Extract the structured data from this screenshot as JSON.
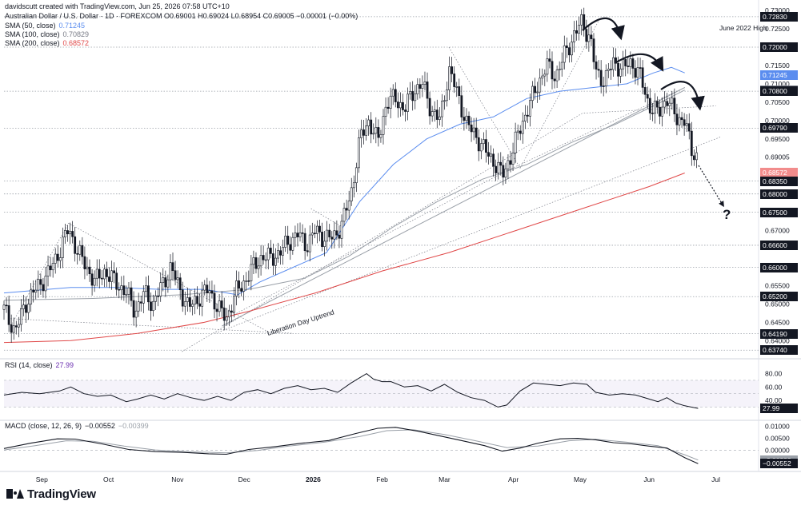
{
  "header": {
    "created_by": "davidscutt created with TradingView.com, Jun 25, 2026 07:58 UTC+10",
    "symbol_line": "Australian Dollar / U.S. Dollar · 1D · FOREXCOM  O0.69001  H0.69024  L0.68954  C0.69005  −0.00001 (−0.00%)",
    "sma50_label": "SMA (50, close)",
    "sma50_value": "0.71245",
    "sma100_label": "SMA (100, close)",
    "sma100_value": "0.70829",
    "sma200_label": "SMA (200, close)",
    "sma200_value": "0.68572",
    "rsi_label": "RSI (14, close)",
    "rsi_value": "27.99",
    "macd_label": "MACD (close, 12, 26, 9)",
    "macd_value1": "−0.00552",
    "macd_value2": "−0.00399"
  },
  "annotations": {
    "june_high": "June 2022 High",
    "uptrend": "Liberation Day Uptrend",
    "question": "?"
  },
  "price_ticks": [
    "0.73000",
    "0.72500",
    "0.71500",
    "0.71000",
    "0.70500",
    "0.70000",
    "0.69500",
    "0.69005",
    "0.67000",
    "0.65500",
    "0.65000",
    "0.64500",
    "0.64000"
  ],
  "price_levels": [
    {
      "label": "0.72830",
      "value": 0.7283,
      "bg": "#131722",
      "fg": "#ffffff"
    },
    {
      "label": "0.72000",
      "value": 0.72,
      "bg": "#131722",
      "fg": "#ffffff"
    },
    {
      "label": "0.71245",
      "value": 0.71245,
      "bg": "#5b8def",
      "fg": "#ffffff"
    },
    {
      "label": "0.70829",
      "value": 0.70829,
      "bg": "#787b86",
      "fg": "#ffffff"
    },
    {
      "label": "0.70800",
      "value": 0.708,
      "bg": "#131722",
      "fg": "#ffffff"
    },
    {
      "label": "0.69790",
      "value": 0.6979,
      "bg": "#131722",
      "fg": "#ffffff"
    },
    {
      "label": "0.68572",
      "value": 0.68572,
      "bg": "#f28c8c",
      "fg": "#ffffff"
    },
    {
      "label": "0.68350",
      "value": 0.6835,
      "bg": "#131722",
      "fg": "#ffffff"
    },
    {
      "label": "0.68000",
      "value": 0.68,
      "bg": "#131722",
      "fg": "#ffffff"
    },
    {
      "label": "0.67500",
      "value": 0.675,
      "bg": "#131722",
      "fg": "#ffffff"
    },
    {
      "label": "0.66600",
      "value": 0.666,
      "bg": "#131722",
      "fg": "#ffffff"
    },
    {
      "label": "0.66000",
      "value": 0.66,
      "bg": "#131722",
      "fg": "#ffffff"
    },
    {
      "label": "0.65200",
      "value": 0.652,
      "bg": "#131722",
      "fg": "#ffffff"
    },
    {
      "label": "0.64190",
      "value": 0.6419,
      "bg": "#131722",
      "fg": "#ffffff"
    },
    {
      "label": "0.63740",
      "value": 0.6374,
      "bg": "#131722",
      "fg": "#ffffff"
    }
  ],
  "rsi_ticks": [
    "80.00",
    "60.00",
    "40.00"
  ],
  "rsi_current": {
    "label": "27.99",
    "value": 27.99
  },
  "macd_ticks": [
    "0.01000",
    "0.00500",
    "0.00000"
  ],
  "macd_current": [
    {
      "label": "−0.00399",
      "value": -0.00399,
      "bg": "#9aa0a8"
    },
    {
      "label": "−0.00552",
      "value": -0.00552,
      "bg": "#131722"
    }
  ],
  "x_labels": [
    {
      "label": "Sep",
      "day": 17,
      "bold": false
    },
    {
      "label": "Oct",
      "day": 47,
      "bold": false
    },
    {
      "label": "Nov",
      "day": 78,
      "bold": false
    },
    {
      "label": "Dec",
      "day": 108,
      "bold": false
    },
    {
      "label": "2026",
      "day": 139,
      "bold": true
    },
    {
      "label": "Feb",
      "day": 170,
      "bold": false
    },
    {
      "label": "Mar",
      "day": 198,
      "bold": false
    },
    {
      "label": "Apr",
      "day": 229,
      "bold": false
    },
    {
      "label": "May",
      "day": 259,
      "bold": false
    },
    {
      "label": "Jun",
      "day": 290,
      "bold": false
    },
    {
      "label": "Jul",
      "day": 320,
      "bold": false
    }
  ],
  "logo": "TradingView",
  "chart_data": {
    "type": "line",
    "title": "Australian Dollar / U.S. Dollar · 1D · FOREXCOM",
    "x_unit": "calendar days from 2025-08-15",
    "ylim": [
      0.6355,
      0.7322
    ],
    "close": [
      [
        0,
        0.6485
      ],
      [
        5,
        0.6425
      ],
      [
        10,
        0.6505
      ],
      [
        15,
        0.6545
      ],
      [
        20,
        0.6585
      ],
      [
        25,
        0.6645
      ],
      [
        29,
        0.6705
      ],
      [
        33,
        0.6645
      ],
      [
        37,
        0.66
      ],
      [
        41,
        0.656
      ],
      [
        45,
        0.659
      ],
      [
        50,
        0.656
      ],
      [
        55,
        0.653
      ],
      [
        59,
        0.648
      ],
      [
        63,
        0.653
      ],
      [
        67,
        0.65
      ],
      [
        71,
        0.655
      ],
      [
        75,
        0.66
      ],
      [
        79,
        0.654
      ],
      [
        83,
        0.649
      ],
      [
        88,
        0.652
      ],
      [
        92,
        0.654
      ],
      [
        96,
        0.649
      ],
      [
        100,
        0.646
      ],
      [
        104,
        0.653
      ],
      [
        108,
        0.656
      ],
      [
        112,
        0.66
      ],
      [
        116,
        0.663
      ],
      [
        120,
        0.6625
      ],
      [
        124,
        0.664
      ],
      [
        128,
        0.667
      ],
      [
        132,
        0.669
      ],
      [
        136,
        0.666
      ],
      [
        140,
        0.67
      ],
      [
        144,
        0.668
      ],
      [
        148,
        0.668
      ],
      [
        152,
        0.672
      ],
      [
        156,
        0.68
      ],
      [
        160,
        0.695
      ],
      [
        164,
        0.7
      ],
      [
        168,
        0.694
      ],
      [
        172,
        0.705
      ],
      [
        176,
        0.706
      ],
      [
        180,
        0.703
      ],
      [
        184,
        0.708
      ],
      [
        188,
        0.71
      ],
      [
        192,
        0.703
      ],
      [
        196,
        0.7
      ],
      [
        200,
        0.714
      ],
      [
        204,
        0.707
      ],
      [
        208,
        0.699
      ],
      [
        212,
        0.696
      ],
      [
        216,
        0.692
      ],
      [
        220,
        0.689
      ],
      [
        224,
        0.685
      ],
      [
        228,
        0.6905
      ],
      [
        232,
        0.698
      ],
      [
        236,
        0.704
      ],
      [
        240,
        0.71
      ],
      [
        244,
        0.715
      ],
      [
        248,
        0.712
      ],
      [
        252,
        0.718
      ],
      [
        256,
        0.723
      ],
      [
        260,
        0.727
      ],
      [
        262,
        0.724
      ],
      [
        264,
        0.721
      ],
      [
        266,
        0.713
      ],
      [
        270,
        0.711
      ],
      [
        274,
        0.716
      ],
      [
        278,
        0.714
      ],
      [
        282,
        0.716
      ],
      [
        286,
        0.712
      ],
      [
        290,
        0.704
      ],
      [
        294,
        0.702
      ],
      [
        298,
        0.706
      ],
      [
        302,
        0.701
      ],
      [
        306,
        0.7
      ],
      [
        309,
        0.692
      ],
      [
        312,
        0.69
      ]
    ],
    "series": [
      {
        "name": "SMA (50, close)",
        "color": "#5b8def",
        "values": [
          [
            0,
            0.653
          ],
          [
            30,
            0.6545
          ],
          [
            50,
            0.6545
          ],
          [
            70,
            0.654
          ],
          [
            90,
            0.654
          ],
          [
            105,
            0.6525
          ],
          [
            115,
            0.656
          ],
          [
            130,
            0.66
          ],
          [
            145,
            0.664
          ],
          [
            160,
            0.678
          ],
          [
            175,
            0.688
          ],
          [
            190,
            0.695
          ],
          [
            205,
            0.699
          ],
          [
            220,
            0.701
          ],
          [
            235,
            0.706
          ],
          [
            250,
            0.708
          ],
          [
            265,
            0.709
          ],
          [
            280,
            0.71
          ],
          [
            292,
            0.713
          ],
          [
            300,
            0.7145
          ],
          [
            306,
            0.713
          ]
        ]
      },
      {
        "name": "SMA (100, close)",
        "color": "#9aa0a8",
        "values": [
          [
            0,
            0.651
          ],
          [
            40,
            0.6515
          ],
          [
            80,
            0.6525
          ],
          [
            110,
            0.654
          ],
          [
            135,
            0.657
          ],
          [
            155,
            0.663
          ],
          [
            175,
            0.671
          ],
          [
            195,
            0.678
          ],
          [
            215,
            0.684
          ],
          [
            235,
            0.688
          ],
          [
            255,
            0.694
          ],
          [
            275,
            0.699
          ],
          [
            292,
            0.704
          ],
          [
            306,
            0.7083
          ]
        ]
      },
      {
        "name": "SMA (200, close)",
        "color": "#e04848",
        "values": [
          [
            0,
            0.6395
          ],
          [
            30,
            0.64
          ],
          [
            60,
            0.642
          ],
          [
            90,
            0.645
          ],
          [
            110,
            0.648
          ],
          [
            140,
            0.653
          ],
          [
            170,
            0.659
          ],
          [
            200,
            0.664
          ],
          [
            230,
            0.67
          ],
          [
            260,
            0.676
          ],
          [
            290,
            0.682
          ],
          [
            306,
            0.6857
          ]
        ]
      }
    ],
    "rsi": {
      "ylim": [
        15,
        95
      ],
      "levels": [
        70,
        50,
        30
      ],
      "values": [
        [
          0,
          48
        ],
        [
          8,
          52
        ],
        [
          16,
          50
        ],
        [
          25,
          54
        ],
        [
          30,
          60
        ],
        [
          36,
          50
        ],
        [
          42,
          46
        ],
        [
          48,
          48
        ],
        [
          55,
          38
        ],
        [
          60,
          42
        ],
        [
          66,
          48
        ],
        [
          72,
          42
        ],
        [
          78,
          50
        ],
        [
          84,
          44
        ],
        [
          90,
          40
        ],
        [
          96,
          46
        ],
        [
          102,
          40
        ],
        [
          108,
          52
        ],
        [
          114,
          56
        ],
        [
          120,
          50
        ],
        [
          126,
          58
        ],
        [
          132,
          62
        ],
        [
          138,
          56
        ],
        [
          144,
          58
        ],
        [
          150,
          52
        ],
        [
          156,
          66
        ],
        [
          160,
          74
        ],
        [
          163,
          80
        ],
        [
          166,
          72
        ],
        [
          170,
          68
        ],
        [
          174,
          68
        ],
        [
          180,
          60
        ],
        [
          186,
          62
        ],
        [
          192,
          54
        ],
        [
          198,
          64
        ],
        [
          204,
          52
        ],
        [
          210,
          44
        ],
        [
          216,
          40
        ],
        [
          222,
          30
        ],
        [
          226,
          33
        ],
        [
          232,
          54
        ],
        [
          238,
          66
        ],
        [
          244,
          64
        ],
        [
          250,
          62
        ],
        [
          256,
          66
        ],
        [
          262,
          64
        ],
        [
          266,
          52
        ],
        [
          272,
          48
        ],
        [
          278,
          50
        ],
        [
          284,
          48
        ],
        [
          290,
          42
        ],
        [
          294,
          38
        ],
        [
          298,
          44
        ],
        [
          302,
          36
        ],
        [
          306,
          32
        ],
        [
          312,
          28
        ]
      ]
    },
    "macd": {
      "ylim": [
        -0.0071,
        0.0112
      ],
      "macd_line": [
        [
          0,
          0.0008
        ],
        [
          12,
          0.003
        ],
        [
          24,
          0.0048
        ],
        [
          32,
          0.0047
        ],
        [
          44,
          0.0027
        ],
        [
          56,
          0.0004
        ],
        [
          68,
          -0.0005
        ],
        [
          80,
          -0.0008
        ],
        [
          92,
          -0.0014
        ],
        [
          100,
          -0.0016
        ],
        [
          110,
          0.0004
        ],
        [
          122,
          0.0016
        ],
        [
          134,
          0.003
        ],
        [
          146,
          0.0041
        ],
        [
          158,
          0.007
        ],
        [
          168,
          0.0092
        ],
        [
          176,
          0.0096
        ],
        [
          186,
          0.008
        ],
        [
          196,
          0.006
        ],
        [
          206,
          0.004
        ],
        [
          216,
          0.002
        ],
        [
          224,
          -0.0003
        ],
        [
          232,
          0.001
        ],
        [
          240,
          0.003
        ],
        [
          250,
          0.0048
        ],
        [
          258,
          0.005
        ],
        [
          266,
          0.0044
        ],
        [
          274,
          0.0032
        ],
        [
          282,
          0.0027
        ],
        [
          290,
          0.0018
        ],
        [
          298,
          0.001
        ],
        [
          306,
          -0.003
        ],
        [
          312,
          -0.0055
        ]
      ],
      "signal_line": [
        [
          0,
          0.0002
        ],
        [
          14,
          0.002
        ],
        [
          28,
          0.004
        ],
        [
          40,
          0.0038
        ],
        [
          54,
          0.0018
        ],
        [
          68,
          0.0002
        ],
        [
          84,
          -0.0006
        ],
        [
          100,
          -0.001
        ],
        [
          114,
          0.0
        ],
        [
          128,
          0.0018
        ],
        [
          144,
          0.0034
        ],
        [
          160,
          0.0058
        ],
        [
          172,
          0.0082
        ],
        [
          184,
          0.0086
        ],
        [
          198,
          0.0066
        ],
        [
          212,
          0.004
        ],
        [
          226,
          0.0012
        ],
        [
          240,
          0.0018
        ],
        [
          254,
          0.004
        ],
        [
          266,
          0.0046
        ],
        [
          280,
          0.0034
        ],
        [
          294,
          0.002
        ],
        [
          306,
          -0.0018
        ],
        [
          312,
          -0.004
        ]
      ]
    }
  }
}
